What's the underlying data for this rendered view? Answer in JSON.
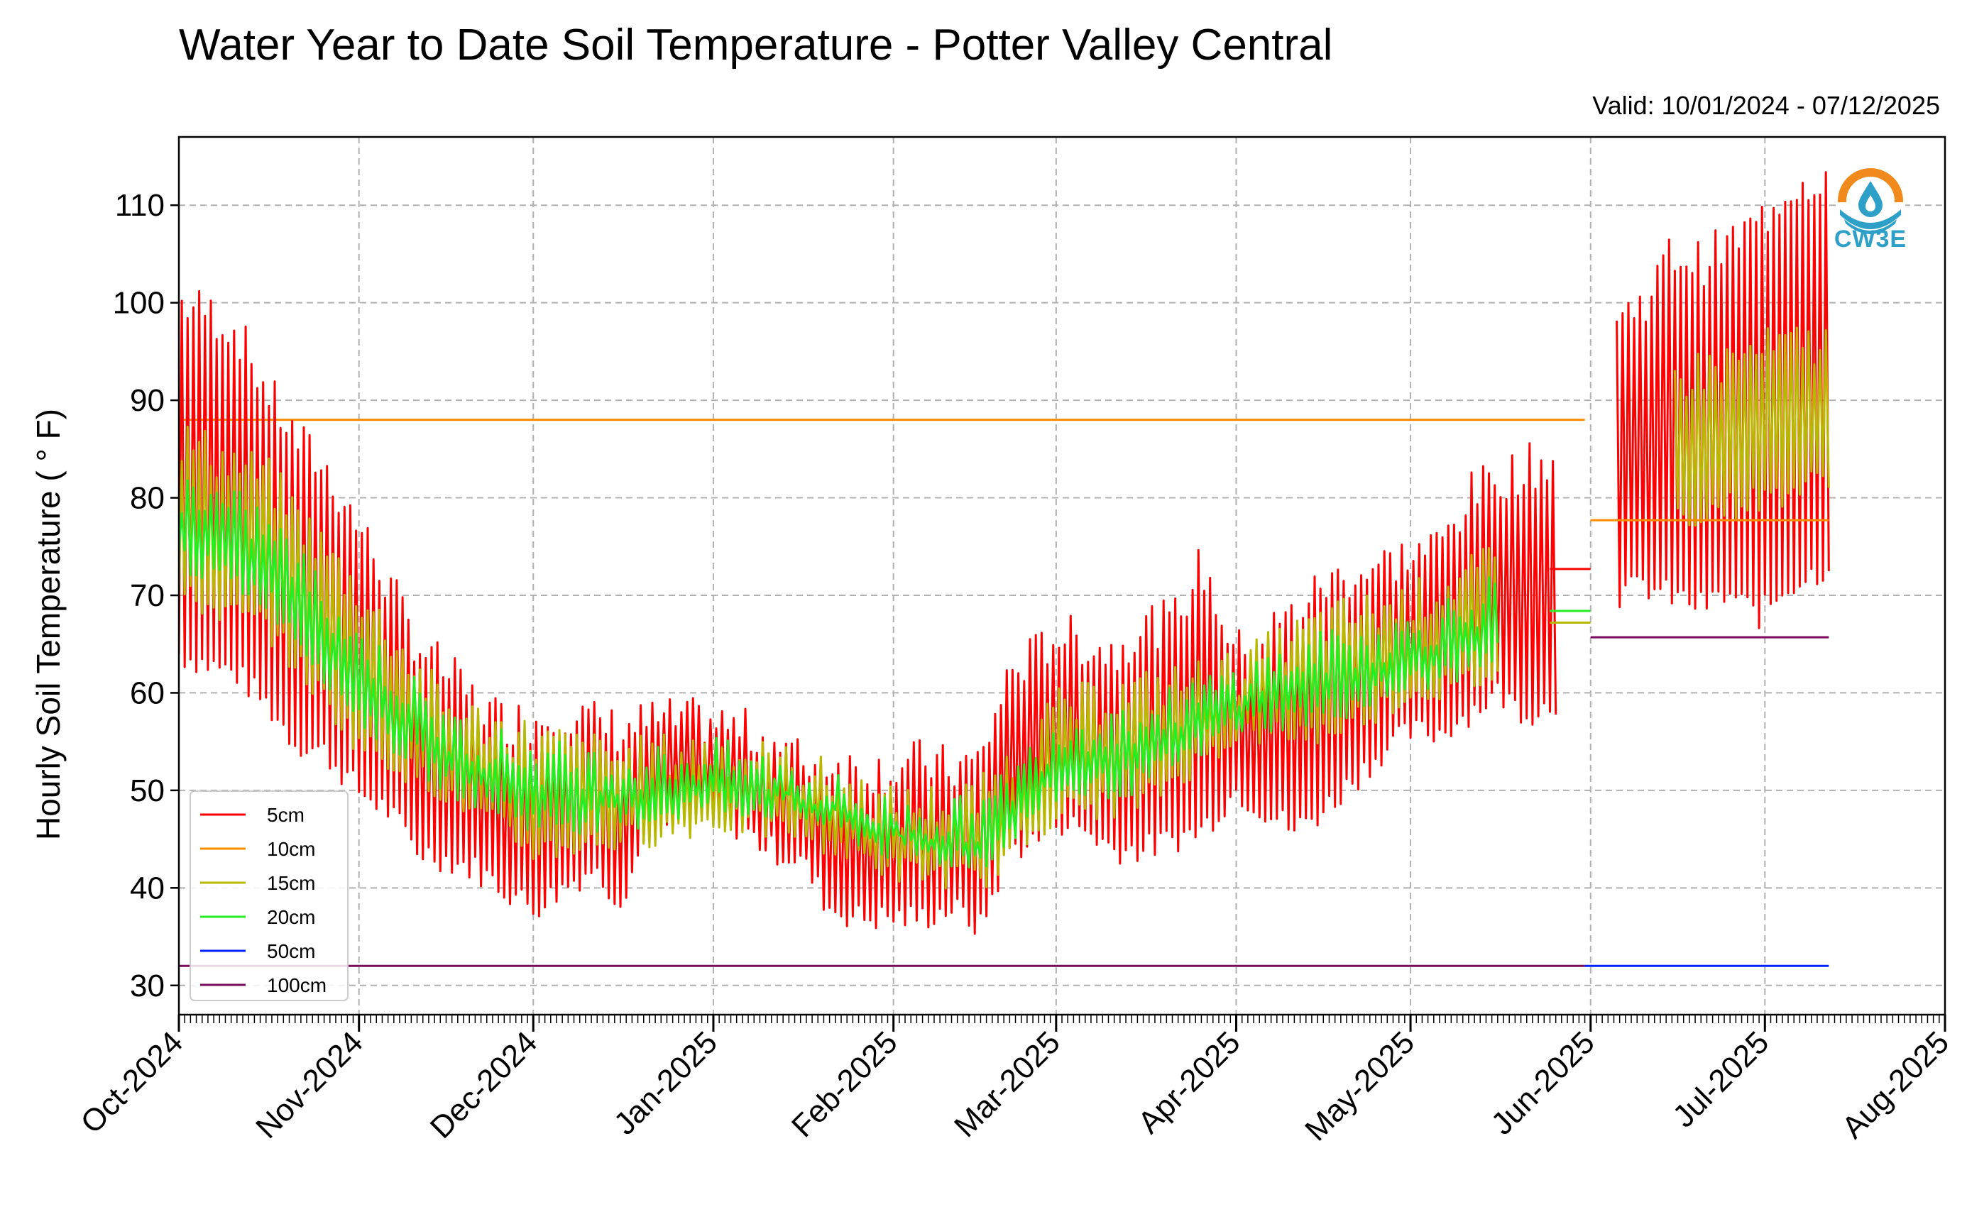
{
  "header": {
    "title": "Water Year to Date Soil Temperature - Potter Valley Central",
    "valid": "Valid: 10/01/2024 - 07/12/2025"
  },
  "logo": {
    "text": "CW3E",
    "icon": "water-drop-logo-icon"
  },
  "chart_data": {
    "type": "line",
    "title": "Water Year to Date Soil Temperature - Potter Valley Central",
    "ylabel": "Hourly Soil Temperature ( ° F)",
    "xlabel": "",
    "ylim": [
      27,
      117
    ],
    "yticks": [
      30,
      40,
      50,
      60,
      70,
      80,
      90,
      100,
      110
    ],
    "xlim": [
      "2024-10-01",
      "2025-08-01"
    ],
    "xticks": [
      "Oct-2024",
      "Nov-2024",
      "Dec-2024",
      "Jan-2025",
      "Feb-2025",
      "Mar-2025",
      "Apr-2025",
      "May-2025",
      "Jun-2025",
      "Jul-2025",
      "Aug-2025"
    ],
    "xtick_dates": [
      "2024-10-01",
      "2024-11-01",
      "2024-12-01",
      "2025-01-01",
      "2025-02-01",
      "2025-03-01",
      "2025-04-01",
      "2025-05-01",
      "2025-06-01",
      "2025-07-01",
      "2025-08-01"
    ],
    "grid": true,
    "legend": "lower-left",
    "note": "Diurnal oscillation: each series swings between daily_min and daily_max once per day; values are approximate daily envelopes",
    "series": [
      {
        "name": "5cm",
        "color": "#ff0000",
        "dates": [
          "2024-10-01",
          "2024-10-06",
          "2024-10-11",
          "2024-10-16",
          "2024-10-21",
          "2024-10-26",
          "2024-11-01",
          "2024-11-06",
          "2024-11-11",
          "2024-11-16",
          "2024-11-21",
          "2024-11-26",
          "2024-12-01",
          "2024-12-06",
          "2024-12-11",
          "2024-12-16",
          "2024-12-21",
          "2024-12-26",
          "2025-01-01",
          "2025-01-06",
          "2025-01-11",
          "2025-01-16",
          "2025-01-21",
          "2025-01-26",
          "2025-02-01",
          "2025-02-06",
          "2025-02-11",
          "2025-02-16",
          "2025-02-21",
          "2025-02-26",
          "2025-03-01",
          "2025-03-06",
          "2025-03-11",
          "2025-03-16",
          "2025-03-21",
          "2025-03-26",
          "2025-04-01",
          "2025-04-06",
          "2025-04-11",
          "2025-04-16",
          "2025-04-21",
          "2025-04-26",
          "2025-05-01",
          "2025-05-06",
          "2025-05-11",
          "2025-05-16",
          "2025-05-21",
          "2025-05-26",
          "2025-05-31",
          "2025-06-05",
          "2025-06-10",
          "2025-06-15",
          "2025-06-20",
          "2025-06-25",
          "2025-06-30",
          "2025-07-05",
          "2025-07-12"
        ],
        "daily_min": [
          64,
          63,
          62,
          59,
          55,
          54,
          50,
          48,
          44,
          43,
          42,
          40,
          38,
          40,
          42,
          39,
          46,
          47,
          48,
          46,
          44,
          43,
          38,
          37,
          37,
          37,
          38,
          36,
          44,
          45,
          47,
          46,
          44,
          44,
          45,
          46,
          50,
          48,
          46,
          48,
          51,
          54,
          56,
          56,
          58,
          60,
          58,
          59,
          null,
          70,
          71,
          70,
          69,
          70,
          68,
          71,
          73
        ],
        "daily_max": [
          100,
          99,
          97,
          91,
          86,
          83,
          77,
          71,
          65,
          62,
          59,
          57,
          57,
          58,
          57,
          56,
          57,
          57,
          57,
          56,
          55,
          53,
          53,
          52,
          52,
          53,
          52,
          53,
          62,
          64,
          66,
          65,
          64,
          67,
          67,
          73,
          64,
          66,
          68,
          71,
          72,
          73,
          74,
          75,
          80,
          82,
          83,
          84,
          null,
          98,
          100,
          105,
          104,
          106,
          108,
          112,
          113
        ]
      },
      {
        "name": "10cm",
        "color": "#ff8c00",
        "dates": [
          "2024-10-01",
          "2025-05-31"
        ],
        "values": [
          88,
          88
        ],
        "note": "flat line at 88 until 2025-05-31, then 77.7"
      },
      {
        "name": "15cm",
        "color": "#b8b800",
        "dates": [
          "2024-10-01",
          "2024-10-16",
          "2024-11-01",
          "2024-11-16",
          "2024-12-01",
          "2024-12-16",
          "2025-01-01",
          "2025-01-16",
          "2025-02-01",
          "2025-02-16",
          "2025-03-01",
          "2025-03-16",
          "2025-04-01",
          "2025-04-16",
          "2025-05-01",
          "2025-05-16",
          "2025-05-31",
          "2025-06-15",
          "2025-07-01",
          "2025-07-12"
        ],
        "daily_min": [
          70,
          67,
          55,
          50,
          44,
          45,
          47,
          46,
          42,
          41,
          48,
          49,
          56,
          56,
          60,
          62,
          null,
          78,
          80,
          82
        ],
        "daily_max": [
          86,
          82,
          70,
          58,
          55,
          53,
          54,
          52,
          48,
          49,
          58,
          60,
          62,
          67,
          69,
          73,
          null,
          92,
          95,
          96
        ]
      },
      {
        "name": "20cm",
        "color": "#22ee22",
        "dates": [
          "2024-10-01",
          "2024-10-16",
          "2024-11-01",
          "2024-11-16",
          "2024-12-01",
          "2024-12-16",
          "2025-01-01",
          "2025-01-16",
          "2025-02-01",
          "2025-02-16",
          "2025-03-01",
          "2025-03-16",
          "2025-04-01",
          "2025-04-16",
          "2025-05-01",
          "2025-05-16",
          "2025-05-31"
        ],
        "daily_min": [
          74,
          70,
          58,
          51,
          47,
          47,
          49,
          48,
          44,
          43,
          50,
          51,
          57,
          58,
          61,
          64,
          null
        ],
        "daily_max": [
          81,
          77,
          65,
          56,
          53,
          52,
          53,
          51,
          47,
          47,
          56,
          57,
          61,
          64,
          66,
          70,
          null
        ]
      },
      {
        "name": "50cm",
        "color": "#0022ff",
        "dates": [
          "2024-10-01",
          "2025-07-12"
        ],
        "values": [
          32,
          32
        ]
      },
      {
        "name": "100cm",
        "color": "#7a0a5a",
        "dates": [
          "2024-10-01",
          "2025-05-31"
        ],
        "values": [
          32,
          32
        ],
        "note": "flat line at 32 until 2025-05-31, then 65.7"
      }
    ],
    "june_markers": [
      {
        "series": "5cm",
        "value": 72.7
      },
      {
        "series": "20cm",
        "value": 68.4
      },
      {
        "series": "15cm",
        "value": 67.2
      },
      {
        "series": "10cm",
        "value": 77.7
      },
      {
        "series": "100cm",
        "value": 65.7
      }
    ]
  }
}
